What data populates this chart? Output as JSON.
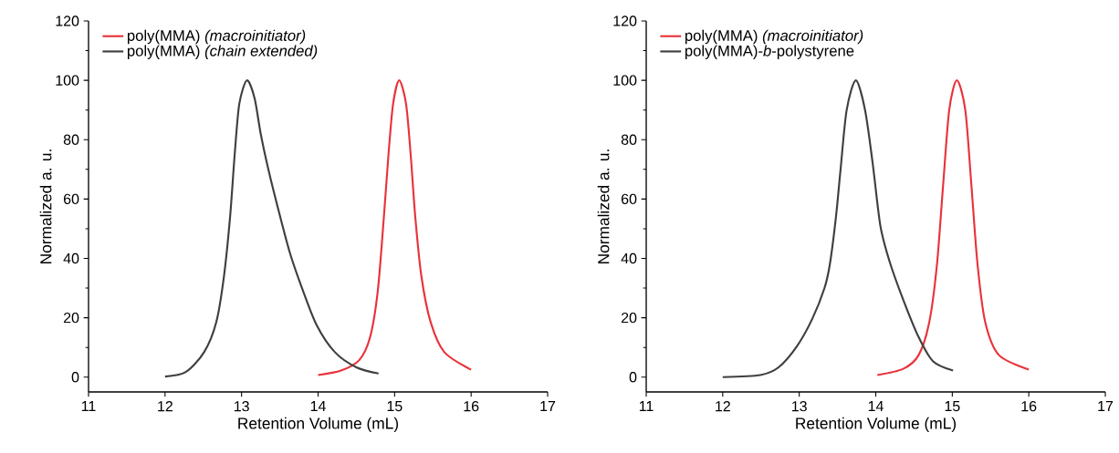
{
  "chart_data": [
    {
      "type": "line",
      "xlabel": "Retention Volume (mL)",
      "ylabel": "Normalized a. u.",
      "xlim": [
        11,
        17
      ],
      "ylim": [
        -5,
        120
      ],
      "xticks": [
        11,
        12,
        13,
        14,
        15,
        16,
        17
      ],
      "yticks": [
        0,
        20,
        40,
        60,
        80,
        100,
        120
      ],
      "legend": "top left",
      "line_style": "solid",
      "series": [
        {
          "name": "poly(MMA) *(macroinitiator)*",
          "color": "#e8333a",
          "x": [
            14.0,
            14.3,
            14.54,
            14.68,
            14.78,
            14.86,
            14.92,
            14.98,
            15.06,
            15.15,
            15.21,
            15.27,
            15.35,
            15.47,
            15.65,
            16.0
          ],
          "values": [
            0.7,
            2.2,
            5.8,
            13.5,
            29,
            54,
            75,
            92,
            100,
            92,
            75,
            54,
            34,
            18.6,
            8.4,
            2.5
          ]
        },
        {
          "name": "poly(MMA) *(chain extended)*",
          "color": "#3f3f3f",
          "x": [
            12.0,
            12.27,
            12.51,
            12.67,
            12.77,
            12.85,
            12.91,
            12.97,
            13.07,
            13.17,
            13.25,
            13.35,
            13.47,
            13.63,
            13.79,
            13.98,
            14.22,
            14.5,
            14.79
          ],
          "values": [
            0.2,
            1.7,
            8.4,
            18.6,
            34,
            54,
            75,
            92,
            100,
            94,
            82,
            70,
            57.5,
            42,
            30,
            17.6,
            8.4,
            3.3,
            1.2
          ]
        }
      ]
    },
    {
      "type": "line",
      "xlabel": "Retention Volume (mL)",
      "ylabel": "Normalized a. u.",
      "xlim": [
        11,
        17
      ],
      "ylim": [
        -5,
        120
      ],
      "xticks": [
        11,
        12,
        13,
        14,
        15,
        16,
        17
      ],
      "yticks": [
        0,
        20,
        40,
        60,
        80,
        100,
        120
      ],
      "legend": "top left",
      "line_style": "solid",
      "series": [
        {
          "name": "poly(MMA) *(macroinitiator)*",
          "color": "#e8333a",
          "x": [
            14.02,
            14.36,
            14.56,
            14.7,
            14.8,
            14.88,
            14.96,
            15.06,
            15.17,
            15.25,
            15.33,
            15.43,
            15.61,
            16.0
          ],
          "values": [
            0.7,
            2.8,
            7.4,
            18.6,
            38,
            64.6,
            90,
            100,
            90,
            64.6,
            38,
            18.6,
            7.4,
            2.5
          ]
        },
        {
          "name": "poly(MMA)-*b*-polystyrene",
          "color": "#3f3f3f",
          "x": [
            12.0,
            12.49,
            12.73,
            12.97,
            13.17,
            13.33,
            13.4,
            13.48,
            13.54,
            13.62,
            13.74,
            13.86,
            13.96,
            14.06,
            14.18,
            14.36,
            14.56,
            14.75,
            15.01
          ],
          "values": [
            0.0,
            0.7,
            3.3,
            10.4,
            19.6,
            30,
            38,
            54,
            70,
            90,
            100,
            90,
            72,
            51,
            39,
            26,
            13.5,
            5.3,
            2.2
          ]
        }
      ]
    }
  ]
}
